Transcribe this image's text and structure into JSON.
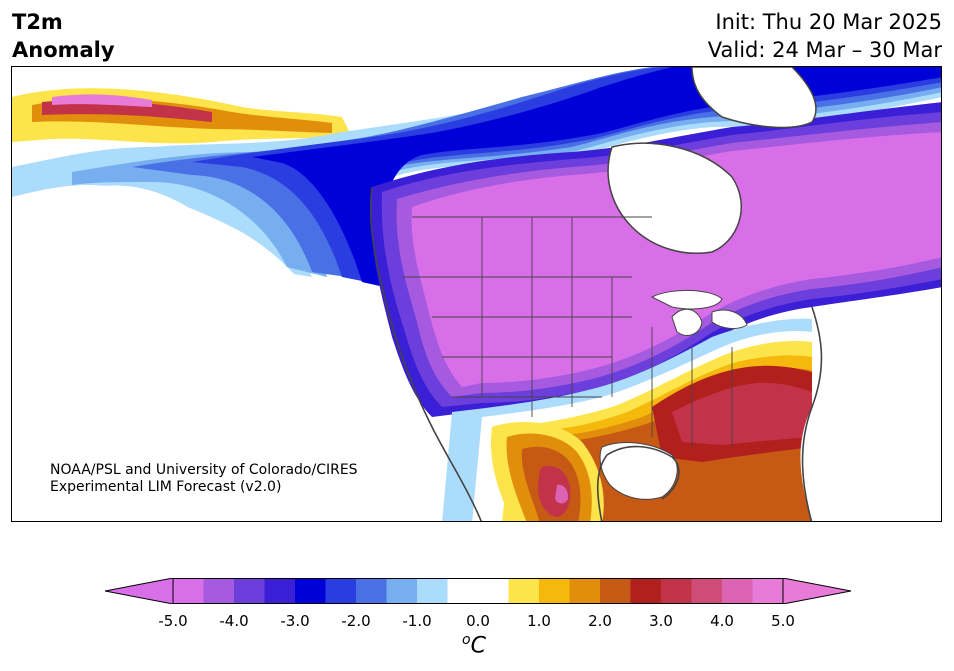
{
  "header": {
    "title_line1": "T2m",
    "title_line2": "Anomaly",
    "init": "Init: Thu 20 Mar 2025",
    "valid": "Valid: 24 Mar – 30 Mar"
  },
  "map": {
    "credit_line1": "NOAA/PSL and University of Colorado/CIRES",
    "credit_line2": "Experimental LIM Forecast (v2.0)"
  },
  "colorbar": {
    "unit_base": "C",
    "unit_sup": "o",
    "tick_labels": [
      "-5.0",
      "-4.0",
      "-3.0",
      "-2.0",
      "-1.0",
      "0.0",
      "1.0",
      "2.0",
      "3.0",
      "4.0",
      "5.0"
    ],
    "colors": [
      "#d86ee8",
      "#a65ae0",
      "#6c3edb",
      "#3a1fd6",
      "#0000d8",
      "#2a3de0",
      "#4a70e6",
      "#76aef0",
      "#acdcfc",
      "#ffffff",
      "#ffffff",
      "#fde44a",
      "#f4b90c",
      "#e08e0c",
      "#c65a14",
      "#b2201e",
      "#c23248",
      "#d04c78",
      "#dc62b4",
      "#e87ad8"
    ],
    "under_color": "#d86ee8",
    "over_color": "#e87ad8"
  }
}
